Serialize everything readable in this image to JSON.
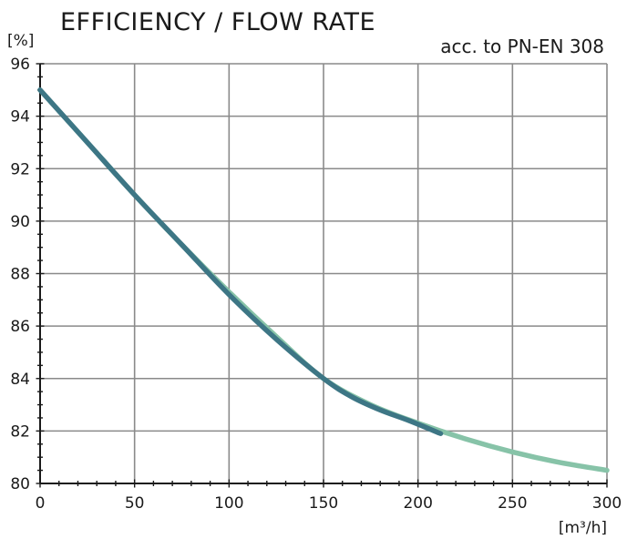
{
  "chart_data": {
    "type": "line",
    "title": "EFFICIENCY / FLOW RATE",
    "subtitle": "acc. to PN-EN 308",
    "ylabel": "[%]",
    "xlabel": "[m³/h]",
    "xlim": [
      0,
      300
    ],
    "ylim": [
      80,
      96
    ],
    "x_ticks": [
      0,
      50,
      100,
      150,
      200,
      250,
      300
    ],
    "y_ticks": [
      80,
      82,
      84,
      86,
      88,
      90,
      92,
      94,
      96
    ],
    "grid": true,
    "series": [
      {
        "color": "#87c3a8",
        "x": [
          0,
          25,
          50,
          75,
          100,
          125,
          150,
          175,
          200,
          225,
          250,
          275,
          300
        ],
        "y": [
          95.0,
          93.0,
          91.0,
          89.1,
          87.3,
          85.6,
          84.0,
          83.0,
          82.3,
          81.7,
          81.2,
          80.8,
          80.5
        ]
      },
      {
        "color": "#3d7685",
        "x": [
          0,
          25,
          50,
          75,
          100,
          125,
          150,
          165,
          180,
          195,
          212
        ],
        "y": [
          95.0,
          93.0,
          91.0,
          89.1,
          87.2,
          85.5,
          84.0,
          83.3,
          82.8,
          82.4,
          81.9
        ]
      }
    ]
  }
}
